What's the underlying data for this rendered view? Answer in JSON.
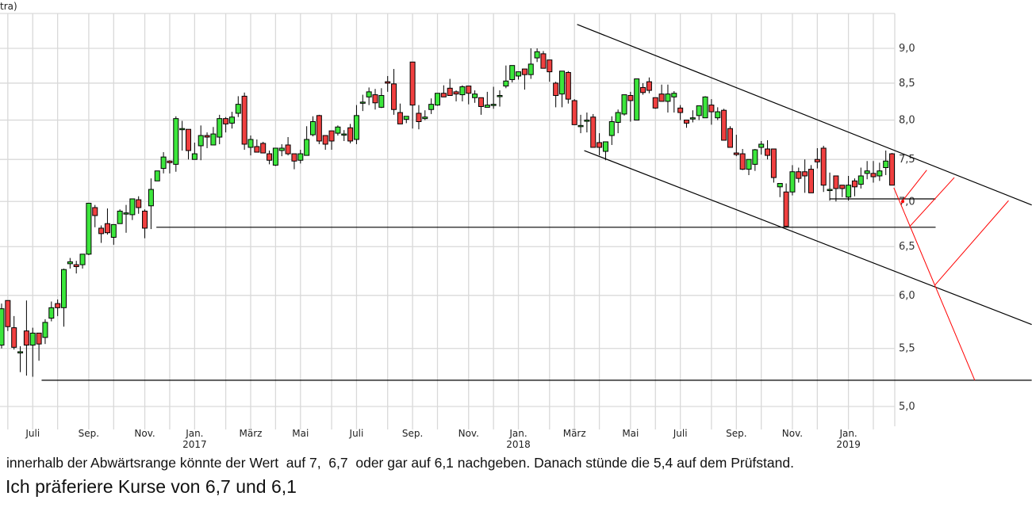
{
  "chart_data": {
    "type": "candlestick",
    "title": "",
    "corner_label": "tra)",
    "interval": "weekly",
    "y_scale": "log",
    "ylim": [
      4.84,
      9.53
    ],
    "grid": true,
    "y_ticks": [
      9.0,
      8.5,
      8.0,
      7.5,
      7.0,
      6.5,
      6.0,
      5.5,
      5.0
    ],
    "y_tick_labels": [
      "9,0",
      "8,5",
      "8,0",
      "7,5",
      "7,0",
      "6,5",
      "6,0",
      "5,5",
      "5,0"
    ],
    "x_tick_labels": [
      "Juli",
      "Sep.",
      "Nov.",
      "Jan.",
      "März",
      "Mai",
      "Juli",
      "Sep.",
      "Nov.",
      "Jan.",
      "März",
      "Mai",
      "Juli",
      "Sep.",
      "Nov.",
      "Jan."
    ],
    "x_year_labels": {
      "Jan. 2017": "2017",
      "Jan. 2018": "2018",
      "Jan. 2019": "2019"
    },
    "xlim": [
      "2016-05-30",
      "2019-02-18"
    ],
    "colors": {
      "up": "#3ce63c",
      "down": "#f04040",
      "wick": "#000000",
      "grid": "#d9d9d9",
      "trend": "#000000",
      "projection": "#ff0000"
    },
    "ohlc": [
      [
        5.53,
        5.92,
        5.5,
        5.87
      ],
      [
        5.95,
        5.95,
        5.66,
        5.7
      ],
      [
        5.69,
        5.8,
        5.49,
        5.51
      ],
      [
        5.47,
        5.52,
        5.29,
        5.47
      ],
      [
        5.66,
        5.95,
        5.26,
        5.53
      ],
      [
        5.53,
        5.69,
        5.25,
        5.64
      ],
      [
        5.64,
        5.64,
        5.39,
        5.54
      ],
      [
        5.6,
        5.77,
        5.54,
        5.74
      ],
      [
        5.78,
        5.94,
        5.75,
        5.88
      ],
      [
        5.92,
        5.96,
        5.8,
        5.88
      ],
      [
        5.88,
        6.27,
        5.7,
        6.26
      ],
      [
        6.32,
        6.38,
        6.27,
        6.34
      ],
      [
        6.31,
        6.35,
        6.22,
        6.29
      ],
      [
        6.31,
        6.42,
        6.27,
        6.42
      ],
      [
        6.42,
        6.98,
        6.41,
        6.98
      ],
      [
        6.93,
        6.96,
        6.71,
        6.84
      ],
      [
        6.7,
        6.73,
        6.54,
        6.64
      ],
      [
        6.75,
        6.92,
        6.63,
        6.65
      ],
      [
        6.6,
        6.74,
        6.52,
        6.74
      ],
      [
        6.75,
        6.91,
        6.75,
        6.89
      ],
      [
        6.87,
        6.96,
        6.65,
        6.87
      ],
      [
        6.85,
        7.03,
        6.79,
        7.03
      ],
      [
        7.02,
        7.06,
        6.86,
        6.93
      ],
      [
        6.89,
        6.91,
        6.59,
        6.7
      ],
      [
        6.95,
        7.27,
        6.69,
        7.14
      ],
      [
        7.24,
        7.36,
        7.24,
        7.36
      ],
      [
        7.39,
        7.59,
        7.33,
        7.53
      ],
      [
        7.48,
        7.49,
        7.33,
        7.46
      ],
      [
        7.44,
        8.05,
        7.35,
        8.02
      ],
      [
        7.89,
        7.99,
        7.61,
        7.89
      ],
      [
        7.88,
        7.88,
        7.5,
        7.61
      ],
      [
        7.5,
        7.71,
        7.5,
        7.57
      ],
      [
        7.67,
        7.93,
        7.49,
        7.8
      ],
      [
        7.8,
        7.84,
        7.64,
        7.78
      ],
      [
        7.68,
        7.91,
        7.68,
        7.82
      ],
      [
        7.78,
        8.07,
        7.69,
        8.02
      ],
      [
        8.02,
        8.04,
        7.84,
        7.95
      ],
      [
        7.96,
        8.11,
        7.89,
        8.04
      ],
      [
        8.09,
        8.32,
        8.04,
        8.21
      ],
      [
        8.32,
        8.37,
        7.62,
        7.69
      ],
      [
        7.65,
        7.8,
        7.55,
        7.75
      ],
      [
        7.66,
        7.75,
        7.59,
        7.59
      ],
      [
        7.7,
        7.72,
        7.58,
        7.58
      ],
      [
        7.57,
        7.61,
        7.44,
        7.49
      ],
      [
        7.43,
        7.64,
        7.42,
        7.64
      ],
      [
        7.61,
        7.69,
        7.54,
        7.64
      ],
      [
        7.68,
        7.78,
        7.55,
        7.57
      ],
      [
        7.57,
        7.57,
        7.38,
        7.48
      ],
      [
        7.49,
        7.62,
        7.45,
        7.57
      ],
      [
        7.55,
        7.92,
        7.55,
        7.75
      ],
      [
        7.81,
        8.05,
        7.79,
        7.98
      ],
      [
        8.06,
        8.07,
        7.69,
        7.73
      ],
      [
        7.8,
        7.8,
        7.62,
        7.69
      ],
      [
        7.86,
        7.86,
        7.62,
        7.73
      ],
      [
        7.83,
        7.93,
        7.8,
        7.91
      ],
      [
        7.82,
        7.87,
        7.73,
        7.82
      ],
      [
        7.9,
        7.95,
        7.7,
        7.73
      ],
      [
        7.75,
        8.2,
        7.69,
        8.06
      ],
      [
        8.24,
        8.34,
        8.12,
        8.24
      ],
      [
        8.31,
        8.44,
        8.2,
        8.38
      ],
      [
        8.34,
        8.42,
        8.14,
        8.23
      ],
      [
        8.17,
        8.43,
        8.16,
        8.33
      ],
      [
        8.52,
        8.6,
        8.38,
        8.5
      ],
      [
        8.49,
        8.7,
        8.07,
        8.14
      ],
      [
        8.1,
        8.22,
        7.95,
        7.95
      ],
      [
        8.01,
        8.05,
        7.96,
        8.05
      ],
      [
        8.8,
        8.8,
        7.89,
        8.2
      ],
      [
        8.09,
        8.2,
        7.88,
        7.98
      ],
      [
        8.02,
        8.13,
        8.0,
        8.04
      ],
      [
        8.14,
        8.29,
        8.08,
        8.21
      ],
      [
        8.2,
        8.36,
        8.19,
        8.36
      ],
      [
        8.36,
        8.47,
        8.31,
        8.31
      ],
      [
        8.43,
        8.56,
        8.33,
        8.33
      ],
      [
        8.38,
        8.4,
        8.25,
        8.35
      ],
      [
        8.34,
        8.47,
        8.25,
        8.45
      ],
      [
        8.46,
        8.46,
        8.21,
        8.36
      ],
      [
        8.3,
        8.4,
        8.23,
        8.35
      ],
      [
        8.3,
        8.3,
        8.07,
        8.18
      ],
      [
        8.17,
        8.38,
        8.17,
        8.2
      ],
      [
        8.21,
        8.45,
        8.15,
        8.21
      ],
      [
        8.33,
        8.4,
        8.18,
        8.33
      ],
      [
        8.46,
        8.75,
        8.43,
        8.53
      ],
      [
        8.55,
        8.75,
        8.51,
        8.75
      ],
      [
        8.6,
        8.66,
        8.55,
        8.66
      ],
      [
        8.7,
        8.7,
        8.41,
        8.62
      ],
      [
        8.62,
        9.0,
        8.56,
        8.77
      ],
      [
        8.86,
        9.0,
        8.8,
        8.95
      ],
      [
        8.92,
        8.96,
        8.71,
        8.71
      ],
      [
        8.83,
        8.83,
        8.52,
        8.66
      ],
      [
        8.5,
        8.52,
        8.17,
        8.33
      ],
      [
        8.35,
        8.67,
        8.17,
        8.67
      ],
      [
        8.65,
        8.67,
        8.22,
        8.28
      ],
      [
        8.26,
        8.28,
        7.94,
        7.94
      ],
      [
        7.93,
        8.07,
        7.83,
        7.93
      ],
      [
        8.0,
        8.1,
        7.84,
        8.0
      ],
      [
        8.04,
        8.08,
        7.65,
        7.65
      ],
      [
        7.71,
        7.83,
        7.55,
        7.65
      ],
      [
        7.6,
        7.72,
        7.49,
        7.72
      ],
      [
        7.8,
        8.05,
        7.68,
        7.98
      ],
      [
        7.97,
        8.14,
        7.83,
        8.1
      ],
      [
        8.08,
        8.34,
        8.06,
        8.34
      ],
      [
        8.33,
        8.38,
        7.98,
        8.26
      ],
      [
        8.0,
        8.56,
        8.0,
        8.56
      ],
      [
        8.44,
        8.5,
        8.34,
        8.37
      ],
      [
        8.52,
        8.58,
        8.36,
        8.4
      ],
      [
        8.3,
        8.3,
        8.15,
        8.16
      ],
      [
        8.35,
        8.48,
        8.25,
        8.25
      ],
      [
        8.25,
        8.48,
        8.1,
        8.35
      ],
      [
        8.31,
        8.39,
        8.1,
        8.36
      ],
      [
        8.16,
        8.2,
        8.0,
        8.1
      ],
      [
        8.0,
        8.0,
        7.9,
        7.96
      ],
      [
        8.03,
        8.13,
        7.97,
        8.03
      ],
      [
        8.06,
        8.19,
        8.0,
        8.19
      ],
      [
        8.03,
        8.32,
        8.03,
        8.31
      ],
      [
        8.2,
        8.28,
        7.94,
        8.11
      ],
      [
        8.03,
        8.17,
        8.0,
        8.11
      ],
      [
        8.13,
        8.15,
        7.74,
        7.74
      ],
      [
        7.89,
        7.92,
        7.65,
        7.65
      ],
      [
        7.58,
        7.81,
        7.54,
        7.56
      ],
      [
        7.57,
        7.63,
        7.37,
        7.38
      ],
      [
        7.38,
        7.5,
        7.31,
        7.5
      ],
      [
        7.44,
        7.63,
        7.36,
        7.62
      ],
      [
        7.65,
        7.73,
        7.56,
        7.69
      ],
      [
        7.63,
        7.74,
        7.5,
        7.55
      ],
      [
        7.63,
        7.63,
        7.22,
        7.28
      ],
      [
        7.17,
        7.21,
        7.05,
        7.21
      ],
      [
        7.11,
        7.21,
        6.71,
        6.72
      ],
      [
        7.11,
        7.43,
        7.07,
        7.35
      ],
      [
        7.35,
        7.4,
        7.22,
        7.27
      ],
      [
        7.35,
        7.5,
        7.1,
        7.3
      ],
      [
        7.38,
        7.43,
        7.1,
        7.1
      ],
      [
        7.5,
        7.64,
        7.39,
        7.47
      ],
      [
        7.64,
        7.67,
        7.11,
        7.19
      ],
      [
        7.14,
        7.34,
        7.01,
        7.14
      ],
      [
        7.3,
        7.3,
        7.0,
        7.15
      ],
      [
        7.19,
        7.19,
        7.05,
        7.15
      ],
      [
        7.05,
        7.3,
        7.01,
        7.19
      ],
      [
        7.24,
        7.27,
        7.06,
        7.17
      ],
      [
        7.2,
        7.4,
        7.15,
        7.3
      ],
      [
        7.33,
        7.48,
        7.26,
        7.36
      ],
      [
        7.33,
        7.48,
        7.22,
        7.29
      ],
      [
        7.3,
        7.46,
        7.24,
        7.36
      ],
      [
        7.4,
        7.61,
        7.31,
        7.48
      ],
      [
        7.57,
        7.58,
        7.19,
        7.19
      ]
    ],
    "annotations": [
      {
        "kind": "support",
        "from": [
          "2016-07-14",
          5.22
        ],
        "to": [
          "2019-08-01",
          5.22
        ],
        "color": "#000000"
      },
      {
        "kind": "support",
        "from": [
          "2016-11-20",
          6.71
        ],
        "to": [
          "2019-04-15",
          6.71
        ],
        "color": "#000000"
      },
      {
        "kind": "support",
        "from": [
          "2018-12-17",
          7.03
        ],
        "to": [
          "2019-04-15",
          7.03
        ],
        "color": "#000000"
      },
      {
        "kind": "channel-upper",
        "from": [
          "2018-03-08",
          9.36
        ],
        "to": [
          "2019-08-01",
          6.96
        ],
        "color": "#000000"
      },
      {
        "kind": "channel-lower",
        "from": [
          "2018-03-16",
          7.61
        ],
        "to": [
          "2019-08-01",
          5.72
        ],
        "color": "#000000"
      },
      {
        "kind": "projection",
        "from": [
          "2019-02-27",
          7.16
        ],
        "to": [
          "2019-05-29",
          5.22
        ],
        "color": "#ff0000"
      },
      {
        "kind": "projection",
        "from": [
          "2019-03-09",
          7.01
        ],
        "to": [
          "2019-04-05",
          7.37
        ],
        "color": "#ff0000"
      },
      {
        "kind": "projection",
        "from": [
          "2019-03-17",
          6.72
        ],
        "to": [
          "2019-05-06",
          7.28
        ],
        "color": "#ff0000"
      },
      {
        "kind": "projection",
        "from": [
          "2019-04-14",
          6.1
        ],
        "to": [
          "2019-07-06",
          7.01
        ],
        "color": "#ff0000"
      }
    ],
    "targets": [
      7.0,
      6.7,
      6.1,
      5.4
    ]
  },
  "notes": {
    "line1": "innerhalb der Abwärtsrange könnte der Wert  auf 7,  6,7  oder gar auf 6,1 nachgeben. Danach stünde die 5,4 auf dem Prüfstand.",
    "line2": "Ich präferiere Kurse von 6,7 und 6,1"
  }
}
